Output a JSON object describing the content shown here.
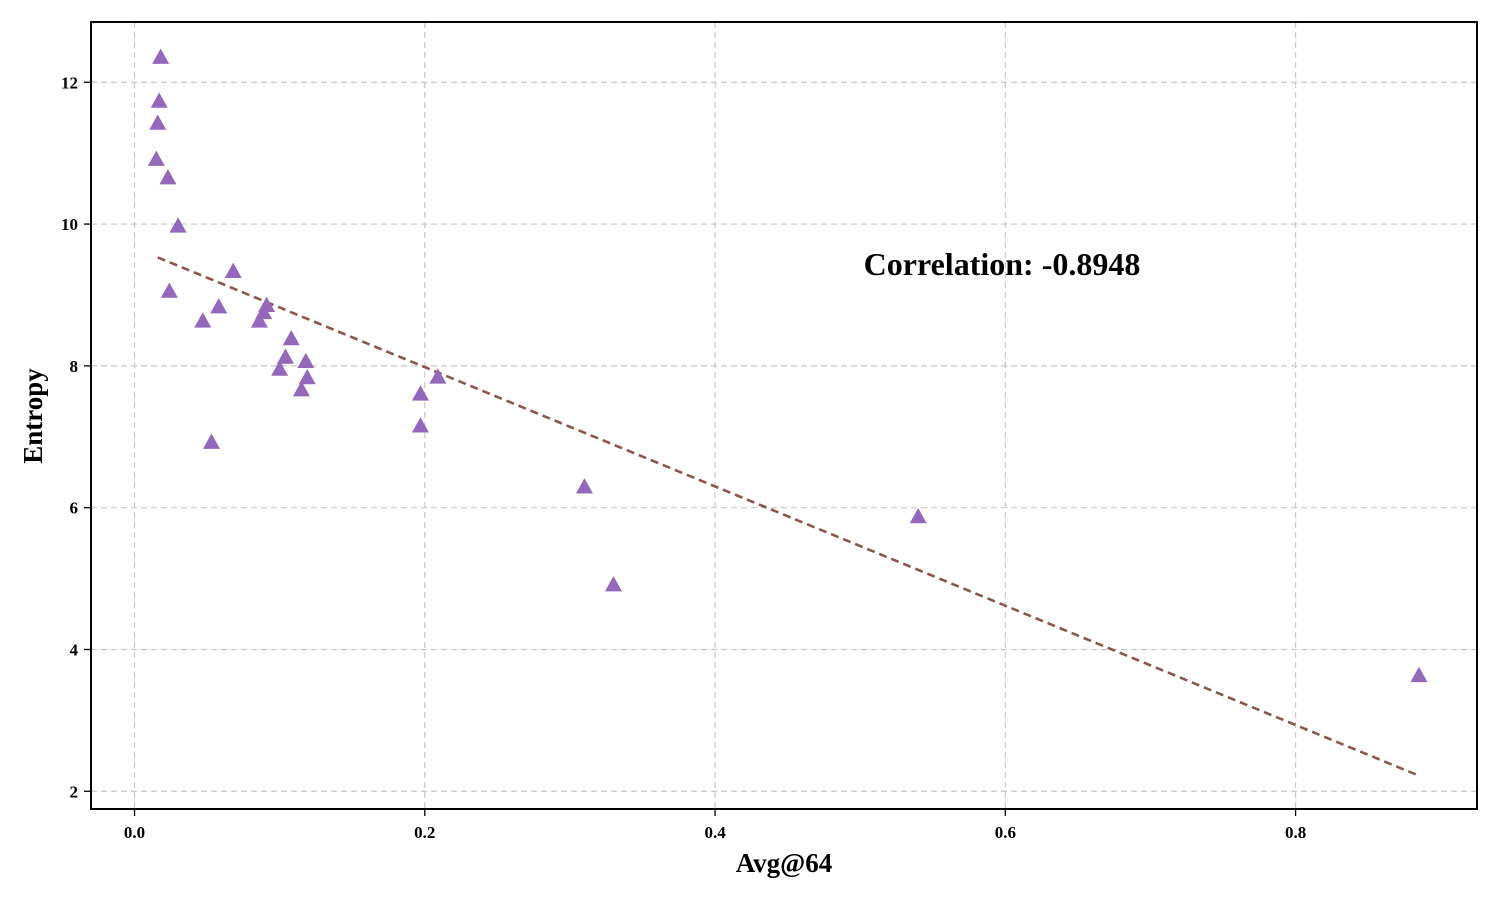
{
  "chart_data": {
    "type": "scatter",
    "xlabel": "Avg@64",
    "ylabel": "Entropy",
    "xlim": [
      -0.03,
      0.925
    ],
    "ylim": [
      1.75,
      12.85
    ],
    "xticks": [
      0.0,
      0.2,
      0.4,
      0.6,
      0.8
    ],
    "xtick_labels": [
      "0.0",
      "0.2",
      "0.4",
      "0.6",
      "0.8"
    ],
    "yticks": [
      2,
      4,
      6,
      8,
      10,
      12
    ],
    "ytick_labels": [
      "2",
      "4",
      "6",
      "8",
      "10",
      "12"
    ],
    "grid": true,
    "annotation": "Correlation: -0.8948",
    "marker": "triangle",
    "colors": {
      "points": "#9467bd",
      "trend": "#8c564b"
    },
    "series": [
      {
        "points": [
          {
            "x": 0.018,
            "y": 12.35
          },
          {
            "x": 0.017,
            "y": 11.73
          },
          {
            "x": 0.016,
            "y": 11.42
          },
          {
            "x": 0.015,
            "y": 10.91
          },
          {
            "x": 0.023,
            "y": 10.65
          },
          {
            "x": 0.03,
            "y": 9.97
          },
          {
            "x": 0.068,
            "y": 9.33
          },
          {
            "x": 0.024,
            "y": 9.05
          },
          {
            "x": 0.058,
            "y": 8.83
          },
          {
            "x": 0.047,
            "y": 8.63
          },
          {
            "x": 0.091,
            "y": 8.85
          },
          {
            "x": 0.089,
            "y": 8.75
          },
          {
            "x": 0.086,
            "y": 8.63
          },
          {
            "x": 0.108,
            "y": 8.38
          },
          {
            "x": 0.104,
            "y": 8.12
          },
          {
            "x": 0.118,
            "y": 8.06
          },
          {
            "x": 0.1,
            "y": 7.95
          },
          {
            "x": 0.119,
            "y": 7.83
          },
          {
            "x": 0.115,
            "y": 7.66
          },
          {
            "x": 0.209,
            "y": 7.84
          },
          {
            "x": 0.197,
            "y": 7.6
          },
          {
            "x": 0.197,
            "y": 7.15
          },
          {
            "x": 0.053,
            "y": 6.92
          },
          {
            "x": 0.31,
            "y": 6.29
          },
          {
            "x": 0.33,
            "y": 4.91
          },
          {
            "x": 0.54,
            "y": 5.87
          },
          {
            "x": 0.885,
            "y": 3.63
          }
        ]
      }
    ],
    "trendline": {
      "x": [
        0.016,
        0.885
      ],
      "y": [
        9.53,
        2.22
      ]
    }
  }
}
